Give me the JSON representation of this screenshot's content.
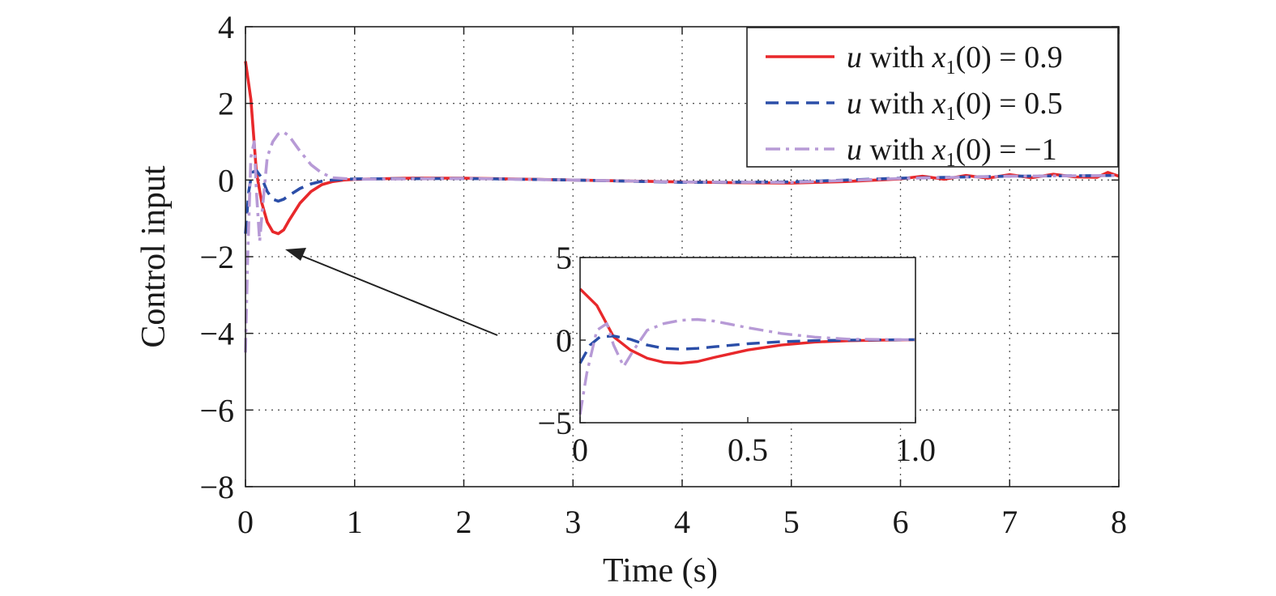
{
  "chart_data": {
    "type": "line",
    "xlabel": "Time (s)",
    "ylabel": "Control input",
    "xlim": [
      0,
      8
    ],
    "ylim": [
      -8,
      4
    ],
    "xticks": [
      "0",
      "1",
      "2",
      "3",
      "4",
      "5",
      "6",
      "7",
      "8"
    ],
    "yticks": [
      "4",
      "2",
      "0",
      "−2",
      "−4",
      "−6",
      "−8"
    ],
    "grid": true,
    "legend_position": "top-right",
    "series": [
      {
        "name": "u with x₁(0) = 0.9",
        "legend": {
          "var": "u",
          "mid": " with ",
          "x": "x",
          "sub": "1",
          "rest": "(0) = 0.9"
        },
        "color": "#e8282b",
        "dash": "solid",
        "x": [
          0,
          0.05,
          0.1,
          0.15,
          0.2,
          0.25,
          0.3,
          0.35,
          0.4,
          0.5,
          0.6,
          0.7,
          0.8,
          0.9,
          1.0,
          1.5,
          2,
          3,
          4,
          4.5,
          5,
          5.5,
          6,
          6.2,
          6.4,
          6.6,
          6.8,
          7,
          7.2,
          7.4,
          7.6,
          7.8,
          7.9,
          8
        ],
        "y": [
          3.1,
          2.1,
          0.2,
          -0.6,
          -1.1,
          -1.35,
          -1.4,
          -1.3,
          -1.05,
          -0.6,
          -0.3,
          -0.12,
          -0.04,
          0.0,
          0.02,
          0.05,
          0.05,
          0.0,
          -0.05,
          -0.07,
          -0.08,
          -0.04,
          0.03,
          0.1,
          0.02,
          0.12,
          0.05,
          0.14,
          0.06,
          0.15,
          0.08,
          0.07,
          0.2,
          0.1
        ]
      },
      {
        "name": "u with x₁(0) = 0.5",
        "legend": {
          "var": "u",
          "mid": " with ",
          "x": "x",
          "sub": "1",
          "rest": "(0) = 0.5"
        },
        "color": "#2b4ea8",
        "dash": "dashed",
        "x": [
          0,
          0.03,
          0.06,
          0.1,
          0.15,
          0.2,
          0.25,
          0.3,
          0.35,
          0.4,
          0.5,
          0.6,
          0.7,
          0.8,
          1.0,
          2,
          3,
          4,
          5,
          6,
          7,
          8
        ],
        "y": [
          -1.4,
          -0.3,
          0.2,
          0.25,
          0.05,
          -0.3,
          -0.5,
          -0.55,
          -0.5,
          -0.4,
          -0.22,
          -0.1,
          -0.03,
          0.0,
          0.03,
          0.04,
          0.0,
          -0.06,
          -0.05,
          0.05,
          0.1,
          0.12
        ]
      },
      {
        "name": "u with x₁(0) = −1",
        "legend": {
          "var": "u",
          "mid": " with ",
          "x": "x",
          "sub": "1",
          "rest": "(0) = −1"
        },
        "color": "#b79ad6",
        "dash": "dashdot",
        "x": [
          0,
          0.02,
          0.05,
          0.08,
          0.1,
          0.13,
          0.16,
          0.2,
          0.25,
          0.3,
          0.35,
          0.4,
          0.45,
          0.5,
          0.6,
          0.7,
          0.8,
          1.0,
          2,
          3,
          4,
          5,
          6,
          7,
          8
        ],
        "y": [
          -4.5,
          -2.0,
          0.6,
          1.0,
          -0.3,
          -1.6,
          -0.6,
          0.6,
          1.0,
          1.2,
          1.25,
          1.15,
          0.95,
          0.75,
          0.4,
          0.18,
          0.06,
          0.02,
          0.04,
          0.0,
          -0.05,
          -0.06,
          0.04,
          0.1,
          0.12
        ]
      }
    ],
    "inset": {
      "xlim": [
        0,
        1.0
      ],
      "ylim": [
        -5,
        5
      ],
      "xticks": [
        "0",
        "0.5",
        "1.0"
      ],
      "yticks": [
        "5",
        "0",
        "−5"
      ]
    }
  }
}
